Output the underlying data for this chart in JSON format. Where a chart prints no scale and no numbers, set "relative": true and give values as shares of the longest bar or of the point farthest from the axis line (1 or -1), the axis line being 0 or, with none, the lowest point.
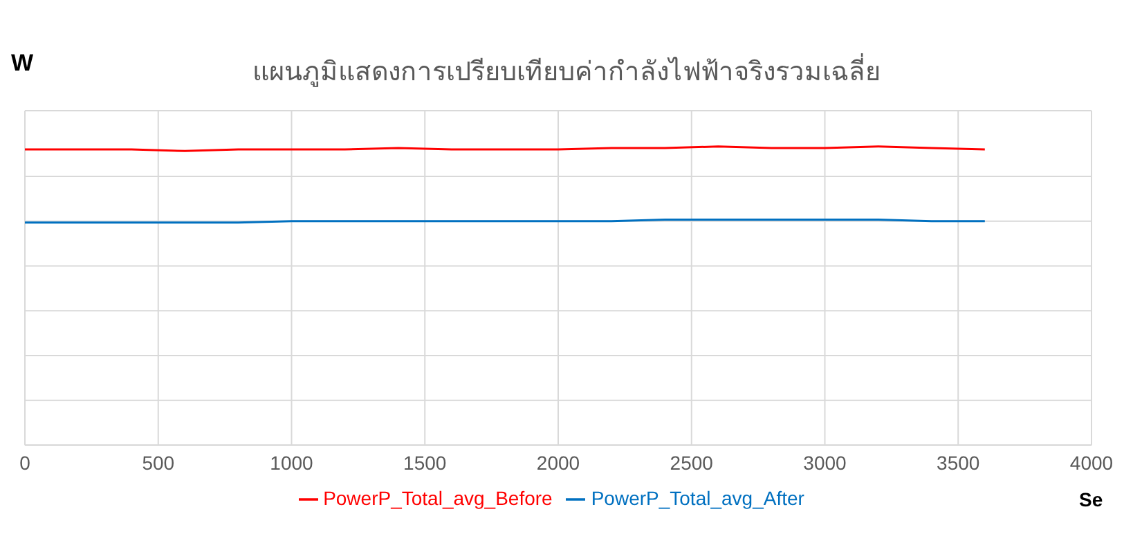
{
  "chart_data": {
    "type": "line",
    "title": "แผนภูมิแสดงการเปรียบเทียบค่ากำลังไฟฟ้าจริงรวมเฉลี่ย",
    "xlabel": "Se",
    "ylabel": "W",
    "relative": true,
    "x": [
      0,
      200,
      400,
      600,
      800,
      1000,
      1200,
      1400,
      1600,
      1800,
      2000,
      2200,
      2400,
      2600,
      2800,
      3000,
      3200,
      3400,
      3600
    ],
    "series": [
      {
        "name": "PowerP_Total_avg_Before",
        "color": "#ff0000",
        "values": [
          0.99,
          0.99,
          0.99,
          0.985,
          0.99,
          0.99,
          0.99,
          0.995,
          0.99,
          0.99,
          0.99,
          0.995,
          0.995,
          1,
          0.995,
          0.995,
          1,
          0.995,
          0.99
        ]
      },
      {
        "name": "PowerP_Total_avg_After",
        "color": "#0070c0",
        "values": [
          0.745,
          0.745,
          0.745,
          0.745,
          0.745,
          0.75,
          0.75,
          0.75,
          0.75,
          0.75,
          0.75,
          0.75,
          0.755,
          0.755,
          0.755,
          0.755,
          0.755,
          0.75,
          0.75
        ]
      }
    ],
    "xlim": [
      0,
      4000
    ],
    "xticks": [
      0,
      500,
      1000,
      1500,
      2000,
      2500,
      3000,
      3500,
      4000
    ],
    "grid": true,
    "legend": "bottom",
    "marker": "none",
    "line_style": "solid"
  }
}
